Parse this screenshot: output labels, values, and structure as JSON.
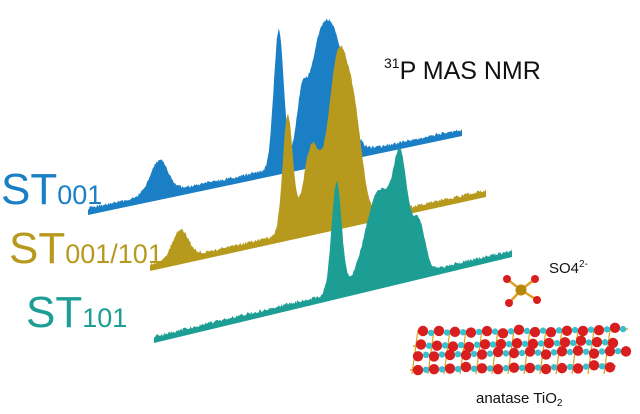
{
  "title": {
    "isotope": "31",
    "text": "P MAS NMR"
  },
  "spectra": [
    {
      "label_main": "ST",
      "label_sub": "001",
      "color": "#1a7fc4"
    },
    {
      "label_main": "ST",
      "label_sub": "001/101",
      "color": "#b79a1d"
    },
    {
      "label_main": "ST",
      "label_sub": "101",
      "color": "#1d9e94"
    }
  ],
  "ion_label": {
    "text": "SO4",
    "charge": "2-"
  },
  "crystal_label": {
    "text": "anatase TiO",
    "subscript": "2"
  },
  "colors": {
    "oxygen": "#d81e1e",
    "titanium": "#38c0cf",
    "bond": "#e0a020",
    "sulfur": "#b8860b",
    "text": "#111111"
  }
}
